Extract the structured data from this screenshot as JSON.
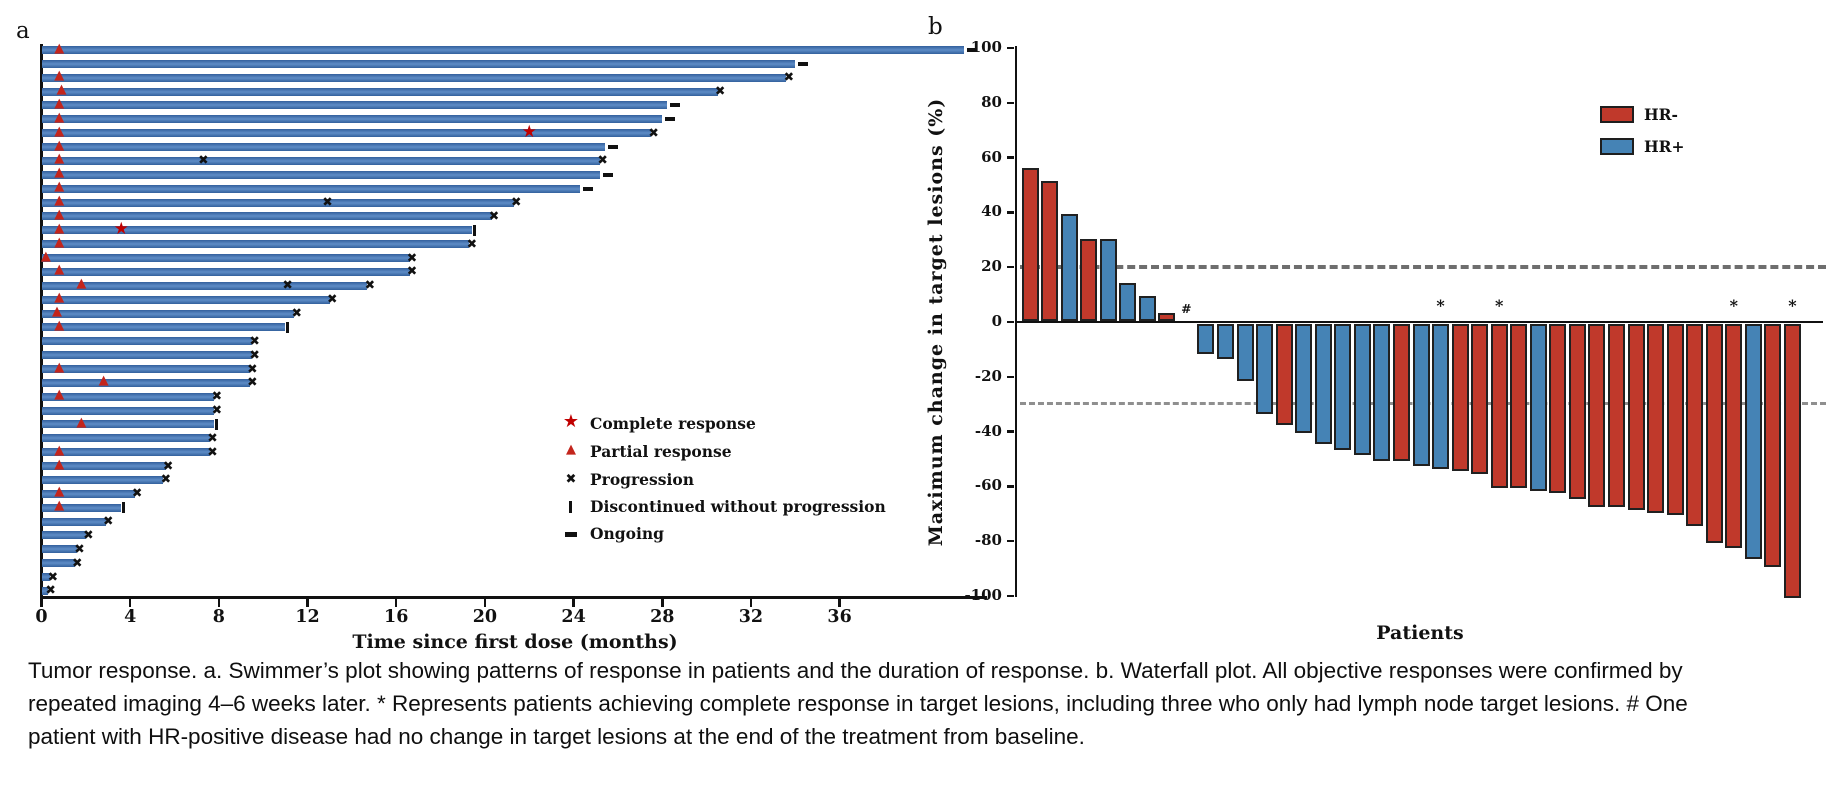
{
  "caption": "Tumor response. a. Swimmer’s plot showing patterns of response in patients and the duration of response. b. Waterfall plot. All objective responses were confirmed by repeated imaging 4–6 weeks later. * Represents patients achieving complete response in target lesions, including three who only had lymph node target lesions. # One patient with HR-positive disease had no change in target lesions at the end of the treatment from baseline.",
  "colors": {
    "swimmer_bar_blue": "#3A68AA",
    "triangle_red": "#C3251C",
    "star_red": "#C00000",
    "marker_black": "#111111",
    "hr_negative_red": "#C0392B",
    "hr_positive_blue": "#4583B5",
    "dashed_reference_gray": "#6e6e6e"
  },
  "chart_data": [
    {
      "id": "swimmer",
      "type": "bar",
      "orientation": "horizontal",
      "panel_label": "a",
      "xlabel": "Time since first dose (months)",
      "xlim": [
        0,
        42.5
      ],
      "xticks": [
        0,
        4,
        8,
        12,
        16,
        20,
        24,
        28,
        32,
        36
      ],
      "grid": false,
      "legend": [
        {
          "symbol": "star",
          "label": "Complete response"
        },
        {
          "symbol": "triangle",
          "label": "Partial response"
        },
        {
          "symbol": "x",
          "label": "Progression"
        },
        {
          "symbol": "vbar",
          "label": "Discontinued without progression"
        },
        {
          "symbol": "dash",
          "label": "Ongoing"
        }
      ],
      "patients": [
        {
          "duration": 41.6,
          "end": "ongoing",
          "partial_response_at": 0.8
        },
        {
          "duration": 34.0,
          "end": "ongoing"
        },
        {
          "duration": 33.6,
          "end": "progression",
          "partial_response_at": 0.8
        },
        {
          "duration": 30.5,
          "end": "progression",
          "partial_response_at": 0.9
        },
        {
          "duration": 28.2,
          "end": "ongoing",
          "partial_response_at": 0.8
        },
        {
          "duration": 28.0,
          "end": "ongoing",
          "partial_response_at": 0.8
        },
        {
          "duration": 27.5,
          "end": "progression",
          "partial_response_at": 0.8,
          "complete_response_at": 22.0
        },
        {
          "duration": 25.4,
          "end": "ongoing",
          "partial_response_at": 0.8
        },
        {
          "duration": 25.2,
          "end": "progression",
          "partial_response_at": 0.8,
          "progression_at": 7.3
        },
        {
          "duration": 25.2,
          "end": "ongoing",
          "partial_response_at": 0.8
        },
        {
          "duration": 24.3,
          "end": "ongoing",
          "partial_response_at": 0.8
        },
        {
          "duration": 21.3,
          "end": "progression",
          "partial_response_at": 0.8,
          "progression_at": 12.9
        },
        {
          "duration": 20.3,
          "end": "progression",
          "partial_response_at": 0.8
        },
        {
          "duration": 19.4,
          "end": "discontinued",
          "partial_response_at": 0.8,
          "complete_response_at": 3.6
        },
        {
          "duration": 19.3,
          "end": "progression",
          "partial_response_at": 0.8
        },
        {
          "duration": 16.6,
          "end": "progression",
          "partial_response_at": 0.2
        },
        {
          "duration": 16.6,
          "end": "progression",
          "partial_response_at": 0.8
        },
        {
          "duration": 14.7,
          "end": "progression",
          "partial_response_at": 1.8,
          "progression_at": 11.1
        },
        {
          "duration": 13.0,
          "end": "progression",
          "partial_response_at": 0.8
        },
        {
          "duration": 11.4,
          "end": "progression",
          "partial_response_at": 0.7
        },
        {
          "duration": 11.0,
          "end": "discontinued",
          "partial_response_at": 0.8
        },
        {
          "duration": 9.5,
          "end": "progression"
        },
        {
          "duration": 9.5,
          "end": "progression"
        },
        {
          "duration": 9.4,
          "end": "progression",
          "partial_response_at": 0.8
        },
        {
          "duration": 9.4,
          "end": "progression",
          "partial_response_at": 2.8
        },
        {
          "duration": 7.8,
          "end": "progression",
          "partial_response_at": 0.8
        },
        {
          "duration": 7.8,
          "end": "progression"
        },
        {
          "duration": 7.8,
          "end": "discontinued",
          "partial_response_at": 1.8
        },
        {
          "duration": 7.6,
          "end": "progression"
        },
        {
          "duration": 7.6,
          "end": "progression",
          "partial_response_at": 0.8
        },
        {
          "duration": 5.6,
          "end": "progression",
          "partial_response_at": 0.8
        },
        {
          "duration": 5.5,
          "end": "progression"
        },
        {
          "duration": 4.2,
          "end": "progression",
          "partial_response_at": 0.8
        },
        {
          "duration": 3.6,
          "end": "discontinued",
          "partial_response_at": 0.8
        },
        {
          "duration": 2.9,
          "end": "progression"
        },
        {
          "duration": 2.0,
          "end": "progression"
        },
        {
          "duration": 1.6,
          "end": "progression"
        },
        {
          "duration": 1.5,
          "end": "progression"
        },
        {
          "duration": 0.4,
          "end": "progression"
        },
        {
          "duration": 0.3,
          "end": "progression"
        }
      ]
    },
    {
      "id": "waterfall",
      "type": "bar",
      "panel_label": "b",
      "ylabel": "Maximum change in target lesions (%)",
      "xlabel": "Patients",
      "ylim": [
        -100,
        100
      ],
      "yticks": [
        100,
        80,
        60,
        40,
        20,
        0,
        -20,
        -40,
        -60,
        -80,
        -100
      ],
      "reference_lines": [
        20,
        -30
      ],
      "grid": false,
      "legend_position": "upper-right",
      "legend": [
        {
          "label": "HR-",
          "color": "#C0392B"
        },
        {
          "label": "HR+",
          "color": "#4583B5"
        }
      ],
      "bars": [
        {
          "value": 56,
          "group": "HR-"
        },
        {
          "value": 51,
          "group": "HR-"
        },
        {
          "value": 39,
          "group": "HR+"
        },
        {
          "value": 30,
          "group": "HR-"
        },
        {
          "value": 30,
          "group": "HR+"
        },
        {
          "value": 14,
          "group": "HR+"
        },
        {
          "value": 9,
          "group": "HR+"
        },
        {
          "value": 3,
          "group": "HR-"
        },
        {
          "value": 0,
          "group": "HR+",
          "annotation": "#"
        },
        {
          "value": -11,
          "group": "HR+"
        },
        {
          "value": -13,
          "group": "HR+"
        },
        {
          "value": -21,
          "group": "HR+"
        },
        {
          "value": -33,
          "group": "HR+"
        },
        {
          "value": -37,
          "group": "HR-"
        },
        {
          "value": -40,
          "group": "HR+"
        },
        {
          "value": -44,
          "group": "HR+"
        },
        {
          "value": -46,
          "group": "HR+"
        },
        {
          "value": -48,
          "group": "HR+"
        },
        {
          "value": -50,
          "group": "HR+"
        },
        {
          "value": -50,
          "group": "HR-"
        },
        {
          "value": -52,
          "group": "HR+"
        },
        {
          "value": -53,
          "group": "HR+",
          "annotation": "*"
        },
        {
          "value": -54,
          "group": "HR-"
        },
        {
          "value": -55,
          "group": "HR-"
        },
        {
          "value": -60,
          "group": "HR-",
          "annotation": "*"
        },
        {
          "value": -60,
          "group": "HR-"
        },
        {
          "value": -61,
          "group": "HR+"
        },
        {
          "value": -62,
          "group": "HR-"
        },
        {
          "value": -64,
          "group": "HR-"
        },
        {
          "value": -67,
          "group": "HR-"
        },
        {
          "value": -67,
          "group": "HR-"
        },
        {
          "value": -68,
          "group": "HR-"
        },
        {
          "value": -69,
          "group": "HR-"
        },
        {
          "value": -70,
          "group": "HR-"
        },
        {
          "value": -74,
          "group": "HR-"
        },
        {
          "value": -80,
          "group": "HR-"
        },
        {
          "value": -82,
          "group": "HR-",
          "annotation": "*"
        },
        {
          "value": -86,
          "group": "HR+"
        },
        {
          "value": -89,
          "group": "HR-"
        },
        {
          "value": -100,
          "group": "HR-",
          "annotation": "*"
        }
      ]
    }
  ]
}
